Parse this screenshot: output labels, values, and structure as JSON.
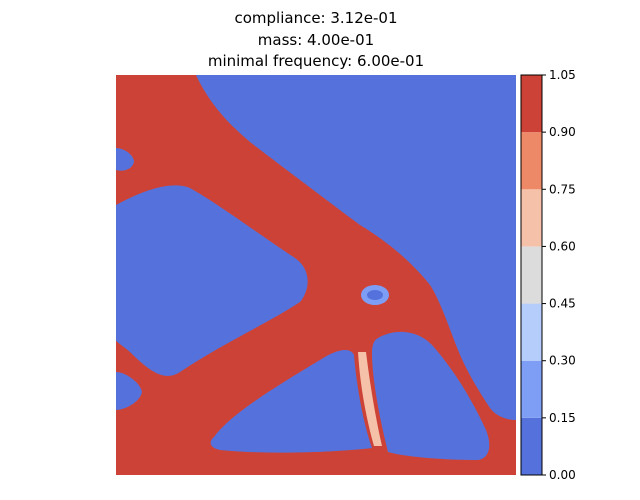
{
  "chart_data": {
    "type": "heatmap",
    "title_lines": [
      "compliance: 3.12e-01",
      "mass: 4.00e-01",
      "minimal frequency: 6.00e-01"
    ],
    "colorbar": {
      "levels": [
        0.0,
        0.15,
        0.3,
        0.45,
        0.6,
        0.75,
        0.9,
        1.05
      ],
      "tick_labels": [
        "0.00",
        "0.15",
        "0.30",
        "0.45",
        "0.60",
        "0.75",
        "0.90",
        "1.05"
      ],
      "colors": [
        "#5572dc",
        "#7e9ef5",
        "#b5cdfa",
        "#dcdcdc",
        "#f5c1a9",
        "#ee8968",
        "#cd4236"
      ]
    },
    "axes": {
      "visible": false,
      "xlim": [
        0,
        1
      ],
      "ylim": [
        0,
        1
      ]
    },
    "field_description": "density distribution from topology optimization (material = high, void = low)"
  }
}
